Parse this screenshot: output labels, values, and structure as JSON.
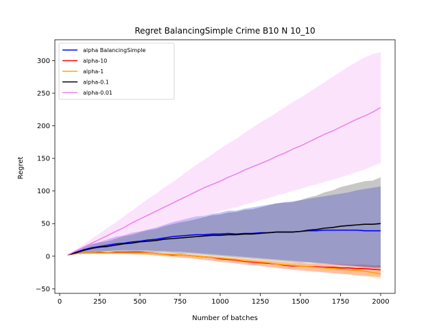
{
  "chart_data": {
    "type": "line",
    "title": "Regret BalancingSimple Crime B10 N 10_10",
    "xlabel": "Number of batches",
    "ylabel": "Regret",
    "xlim": [
      -30,
      2090
    ],
    "ylim": [
      -57,
      332
    ],
    "xticks": [
      0,
      250,
      500,
      750,
      1000,
      1250,
      1500,
      1750,
      2000
    ],
    "yticks": [
      -50,
      0,
      50,
      100,
      150,
      200,
      250,
      300
    ],
    "x": [
      50,
      100,
      150,
      200,
      250,
      300,
      350,
      400,
      450,
      500,
      550,
      600,
      650,
      700,
      750,
      800,
      850,
      900,
      950,
      1000,
      1050,
      1100,
      1150,
      1200,
      1250,
      1300,
      1350,
      1400,
      1450,
      1500,
      1550,
      1600,
      1650,
      1700,
      1750,
      1800,
      1850,
      1900,
      1950,
      2000
    ],
    "legend_position": "upper-left",
    "series": [
      {
        "name": "alpha BalancingSimple",
        "color": "#0000ff",
        "values": [
          2,
          6,
          10,
          13,
          15,
          17,
          19,
          20,
          22,
          23,
          25,
          26,
          28,
          30,
          31,
          32,
          33,
          33,
          34,
          34,
          35,
          34,
          35,
          35,
          36,
          36,
          37,
          37,
          37,
          38,
          39,
          39,
          40,
          40,
          40,
          40,
          40,
          39,
          39,
          39
        ],
        "lower": [
          2,
          4,
          6,
          7,
          8,
          8,
          9,
          9,
          9,
          9,
          9,
          8,
          8,
          7,
          7,
          6,
          5,
          4,
          3,
          2,
          1,
          0,
          -1,
          -2,
          -3,
          -4,
          -5,
          -6,
          -7,
          -8,
          -9,
          -10,
          -11,
          -12,
          -13,
          -14,
          -15,
          -16,
          -17,
          -17
        ],
        "upper": [
          2,
          8,
          14,
          19,
          22,
          26,
          30,
          32,
          36,
          38,
          41,
          44,
          48,
          52,
          55,
          58,
          61,
          62,
          65,
          67,
          70,
          70,
          73,
          75,
          77,
          79,
          81,
          83,
          84,
          86,
          88,
          90,
          92,
          94,
          96,
          98,
          101,
          103,
          105,
          107
        ]
      },
      {
        "name": "alpha-10",
        "color": "#ff0000",
        "values": [
          2,
          4,
          5,
          5,
          6,
          5,
          6,
          6,
          6,
          6,
          5,
          4,
          3,
          2,
          2,
          1,
          0,
          -1,
          -2,
          -4,
          -5,
          -6,
          -8,
          -9,
          -10,
          -11,
          -12,
          -14,
          -15,
          -15,
          -16,
          -16,
          -17,
          -17,
          -18,
          -18,
          -19,
          -19,
          -20,
          -21
        ],
        "lower": [
          2,
          3,
          4,
          4,
          4,
          4,
          4,
          4,
          3,
          3,
          2,
          1,
          0,
          -1,
          -2,
          -3,
          -4,
          -6,
          -7,
          -9,
          -10,
          -11,
          -13,
          -14,
          -15,
          -17,
          -18,
          -20,
          -21,
          -22,
          -23,
          -24,
          -25,
          -26,
          -27,
          -28,
          -29,
          -30,
          -31,
          -32
        ],
        "upper": [
          2,
          5,
          6,
          7,
          7,
          7,
          7,
          7,
          8,
          8,
          7,
          6,
          5,
          4,
          4,
          3,
          2,
          1,
          0,
          -1,
          -2,
          -3,
          -4,
          -5,
          -6,
          -7,
          -8,
          -9,
          -10,
          -10,
          -11,
          -11,
          -12,
          -12,
          -12,
          -13,
          -13,
          -13,
          -14,
          -14
        ]
      },
      {
        "name": "alpha-1",
        "color": "#ffa500",
        "values": [
          2,
          4,
          5,
          5,
          5,
          5,
          5,
          5,
          5,
          5,
          5,
          4,
          3,
          3,
          2,
          1,
          0,
          -1,
          -2,
          -3,
          -4,
          -5,
          -7,
          -8,
          -9,
          -10,
          -12,
          -13,
          -14,
          -15,
          -16,
          -17,
          -18,
          -19,
          -20,
          -21,
          -22,
          -23,
          -25,
          -27
        ],
        "lower": [
          2,
          3,
          3,
          3,
          3,
          3,
          3,
          3,
          3,
          2,
          2,
          1,
          0,
          -1,
          -2,
          -3,
          -4,
          -5,
          -6,
          -7,
          -9,
          -10,
          -11,
          -13,
          -14,
          -15,
          -17,
          -18,
          -19,
          -20,
          -22,
          -23,
          -24,
          -26,
          -27,
          -28,
          -30,
          -31,
          -33,
          -35
        ],
        "upper": [
          2,
          5,
          6,
          7,
          7,
          7,
          7,
          7,
          7,
          7,
          7,
          6,
          6,
          5,
          5,
          4,
          3,
          2,
          1,
          0,
          -1,
          -2,
          -3,
          -4,
          -5,
          -6,
          -7,
          -8,
          -9,
          -10,
          -11,
          -12,
          -13,
          -14,
          -15,
          -16,
          -17,
          -18,
          -19,
          -20
        ]
      },
      {
        "name": "alpha-0.1",
        "color": "#000000",
        "values": [
          2,
          5,
          9,
          12,
          14,
          15,
          17,
          19,
          20,
          22,
          23,
          24,
          26,
          27,
          28,
          29,
          30,
          31,
          32,
          32,
          33,
          33,
          34,
          34,
          35,
          36,
          37,
          37,
          37,
          38,
          40,
          41,
          43,
          44,
          46,
          47,
          48,
          49,
          49,
          50
        ],
        "lower": [
          2,
          3,
          5,
          6,
          7,
          7,
          7,
          7,
          7,
          7,
          6,
          6,
          6,
          5,
          4,
          4,
          3,
          2,
          1,
          0,
          -1,
          -2,
          -3,
          -4,
          -5,
          -6,
          -7,
          -8,
          -9,
          -10,
          -10,
          -11,
          -12,
          -13,
          -14,
          -15,
          -16,
          -17,
          -18,
          -19
        ],
        "upper": [
          2,
          7,
          13,
          18,
          21,
          23,
          27,
          31,
          33,
          37,
          40,
          42,
          46,
          49,
          52,
          54,
          57,
          60,
          63,
          64,
          67,
          68,
          71,
          72,
          75,
          78,
          81,
          82,
          83,
          86,
          90,
          93,
          98,
          101,
          106,
          109,
          112,
          115,
          116,
          121
        ]
      },
      {
        "name": "alpha-0.01",
        "color": "#ee82ee",
        "values": [
          2,
          8,
          14,
          20,
          26,
          32,
          38,
          44,
          51,
          57,
          63,
          69,
          75,
          81,
          87,
          93,
          99,
          105,
          110,
          115,
          121,
          126,
          132,
          137,
          142,
          147,
          153,
          158,
          164,
          169,
          175,
          181,
          187,
          192,
          198,
          204,
          210,
          215,
          221,
          228
        ],
        "lower": [
          2,
          6,
          10,
          13,
          17,
          20,
          24,
          27,
          31,
          34,
          38,
          41,
          44,
          48,
          51,
          55,
          58,
          62,
          65,
          69,
          72,
          75,
          79,
          82,
          86,
          89,
          93,
          96,
          100,
          103,
          107,
          110,
          114,
          117,
          121,
          125,
          129,
          133,
          138,
          143
        ],
        "upper": [
          2,
          10,
          18,
          27,
          35,
          44,
          52,
          61,
          70,
          79,
          88,
          96,
          105,
          113,
          122,
          131,
          140,
          148,
          156,
          165,
          173,
          180,
          189,
          197,
          205,
          212,
          220,
          228,
          236,
          243,
          251,
          259,
          267,
          275,
          283,
          291,
          298,
          305,
          310,
          313
        ]
      }
    ]
  }
}
